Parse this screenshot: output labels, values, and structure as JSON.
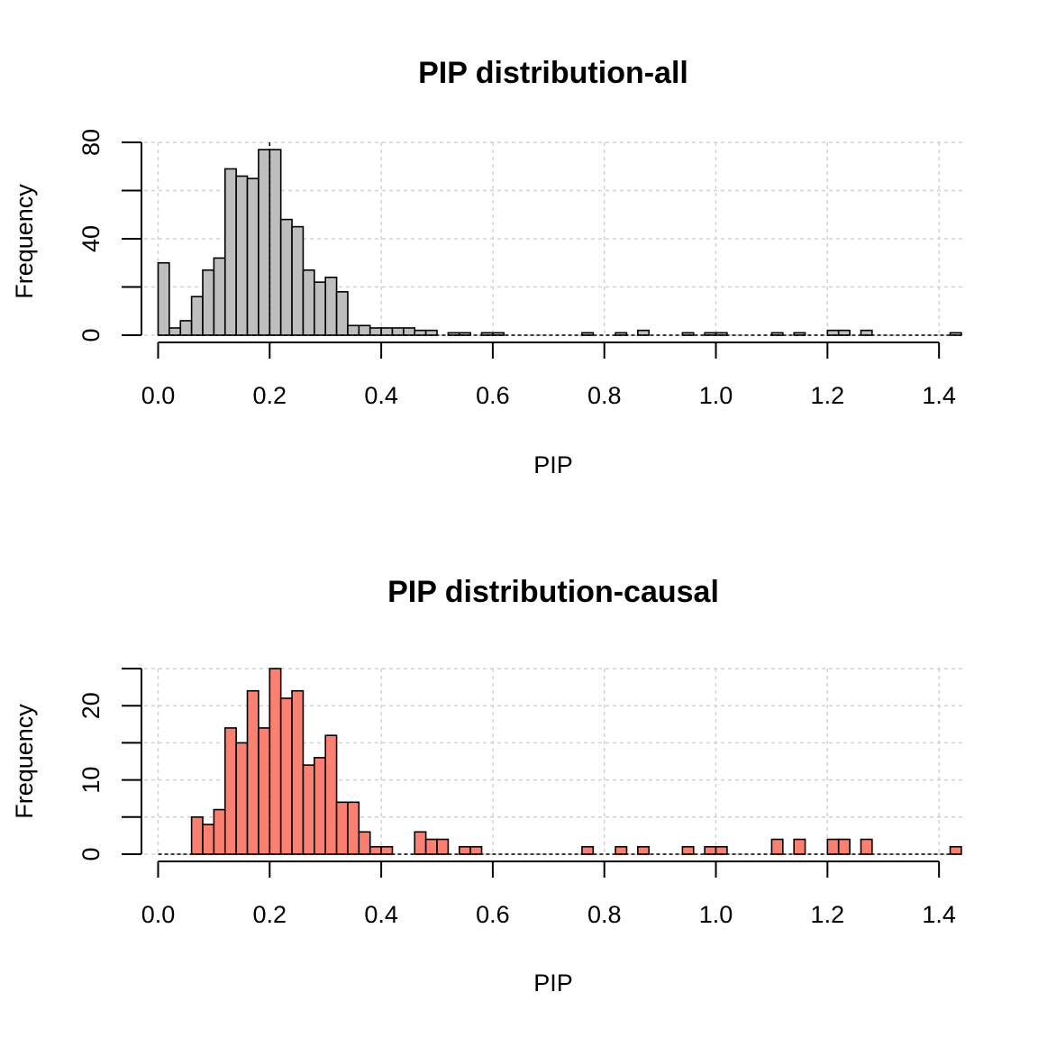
{
  "chart_data": [
    {
      "type": "bar",
      "title": "PIP distribution-all",
      "xlabel": "PIP",
      "ylabel": "Frequency",
      "bar_color": "#bebebe",
      "grid": true,
      "vline_x": 0.2,
      "bin_width": 0.02,
      "bin_start": 0.0,
      "xlim": [
        -0.025,
        1.445
      ],
      "ylim": [
        0,
        80
      ],
      "xticks": [
        "0.0",
        "0.2",
        "0.4",
        "0.6",
        "0.8",
        "1.0",
        "1.2",
        "1.4"
      ],
      "yticks": [
        "0",
        "40",
        "80"
      ],
      "ygrid": [
        0,
        20,
        40,
        60,
        80
      ],
      "values": [
        30,
        3,
        6,
        16,
        27,
        32,
        69,
        66,
        65,
        77,
        77,
        48,
        45,
        27,
        22,
        24,
        18,
        4,
        4,
        3,
        3,
        3,
        3,
        2,
        2,
        0,
        1,
        1,
        0,
        1,
        1,
        0,
        0,
        0,
        0,
        0,
        0,
        0,
        1,
        0,
        0,
        1,
        0,
        2,
        0,
        0,
        0,
        1,
        0,
        1,
        1,
        0,
        0,
        0,
        0,
        1,
        0,
        1,
        0,
        0,
        2,
        2,
        0,
        2,
        0,
        0,
        0,
        0,
        0,
        0,
        0,
        1
      ]
    },
    {
      "type": "bar",
      "title": "PIP distribution-causal",
      "xlabel": "PIP",
      "ylabel": "Frequency",
      "bar_color": "#fa8072",
      "grid": true,
      "vline_x": 0.2,
      "bin_width": 0.02,
      "bin_start": 0.0,
      "xlim": [
        -0.025,
        1.445
      ],
      "ylim": [
        0,
        25
      ],
      "xticks": [
        "0.0",
        "0.2",
        "0.4",
        "0.6",
        "0.8",
        "1.0",
        "1.2",
        "1.4"
      ],
      "yticks": [
        "0",
        "10",
        "20"
      ],
      "ygrid": [
        0,
        5,
        10,
        15,
        20,
        25
      ],
      "values": [
        0,
        0,
        0,
        5,
        4,
        6,
        17,
        15,
        22,
        17,
        25,
        21,
        22,
        12,
        13,
        16,
        7,
        7,
        3,
        1,
        1,
        0,
        0,
        3,
        2,
        2,
        0,
        1,
        1,
        0,
        0,
        0,
        0,
        0,
        0,
        0,
        0,
        0,
        1,
        0,
        0,
        1,
        0,
        1,
        0,
        0,
        0,
        1,
        0,
        1,
        1,
        0,
        0,
        0,
        0,
        2,
        0,
        2,
        0,
        0,
        2,
        2,
        0,
        2,
        0,
        0,
        0,
        0,
        0,
        0,
        0,
        1
      ]
    }
  ]
}
